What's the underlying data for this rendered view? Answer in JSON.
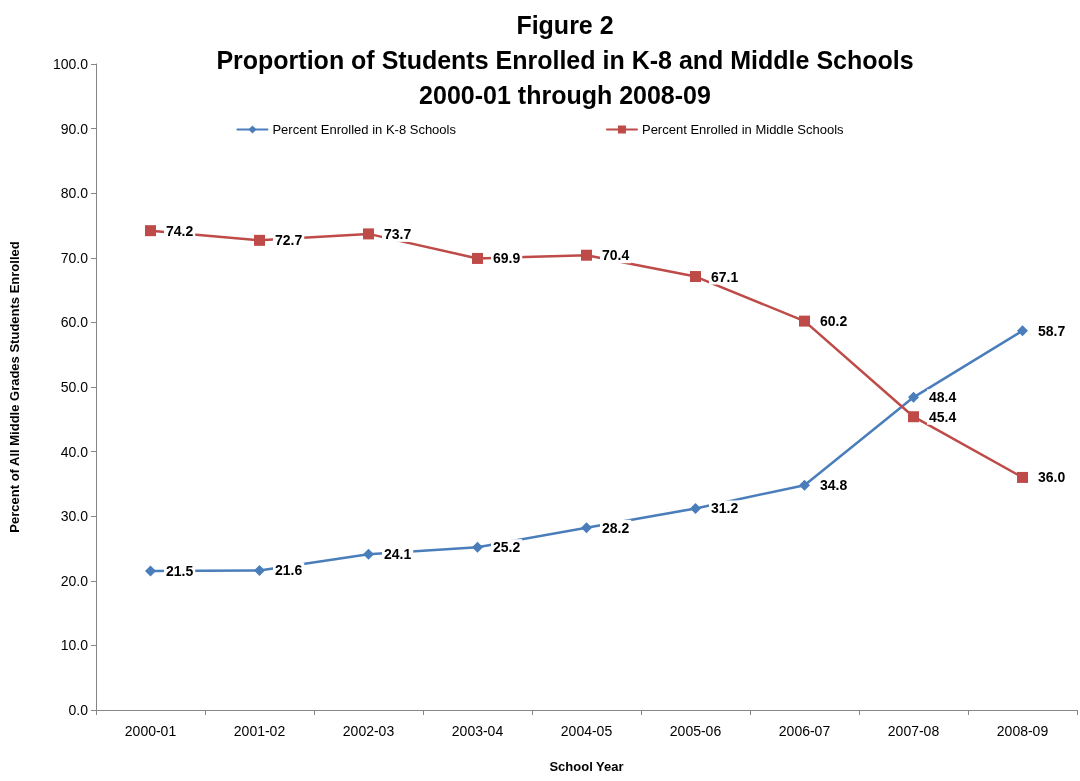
{
  "chart_data": {
    "type": "line",
    "title": "Figure 2\nProportion of Students Enrolled in K-8 and Middle Schools\n2000-01 through 2008-09",
    "xlabel": "School Year",
    "ylabel": "Percent of All Middle Grades Students Enrolled",
    "categories": [
      "2000-01",
      "2001-02",
      "2002-03",
      "2003-04",
      "2004-05",
      "2005-06",
      "2006-07",
      "2007-08",
      "2008-09"
    ],
    "series": [
      {
        "name": "Percent Enrolled in K-8 Schools",
        "color": "#4a7ebb",
        "marker": "diamond",
        "values": [
          21.5,
          21.6,
          24.1,
          25.2,
          28.2,
          31.2,
          34.8,
          48.4,
          58.7
        ],
        "value_labels": [
          "21.5",
          "21.6",
          "24.1",
          "25.2",
          "28.2",
          "31.2",
          "34.8",
          "48.4",
          "58.7"
        ]
      },
      {
        "name": "Percent Enrolled in Middle Schools",
        "color": "#be4b48",
        "marker": "square",
        "values": [
          74.2,
          72.7,
          73.7,
          69.9,
          70.4,
          67.1,
          60.2,
          45.4,
          36.0
        ],
        "value_labels": [
          "74.2",
          "72.7",
          "73.7",
          "69.9",
          "70.4",
          "67.1",
          "60.2",
          "45.4",
          "36.0"
        ]
      }
    ],
    "ylim": [
      0,
      100
    ],
    "yticks": [
      {
        "value": 0,
        "label": "0.0"
      },
      {
        "value": 10,
        "label": "10.0"
      },
      {
        "value": 20,
        "label": "20.0"
      },
      {
        "value": 30,
        "label": "30.0"
      },
      {
        "value": 40,
        "label": "40.0"
      },
      {
        "value": 50,
        "label": "50.0"
      },
      {
        "value": 60,
        "label": "60.0"
      },
      {
        "value": 70,
        "label": "70.0"
      },
      {
        "value": 80,
        "label": "80.0"
      },
      {
        "value": 90,
        "label": "90.0"
      },
      {
        "value": 100,
        "label": "100.0"
      }
    ],
    "grid": false,
    "legend": "top",
    "line_style": "solid"
  }
}
